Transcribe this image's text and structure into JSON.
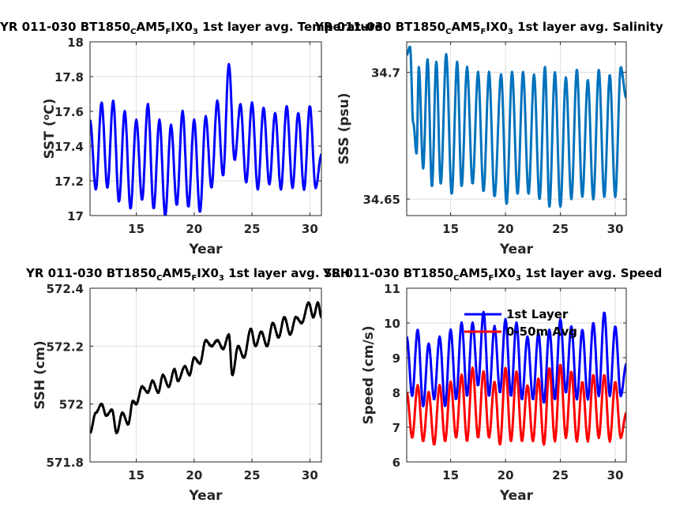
{
  "figure": {
    "colors": {
      "axis": "#262626",
      "grid": "#dfdfdf",
      "background": "#ffffff"
    }
  },
  "chart_data": [
    {
      "type": "line",
      "title": {
        "main": "YR 011-030 BT1850",
        "sub1": "C",
        "mid1": "AM5",
        "sub2": "F",
        "mid2": "IX0",
        "sub3": "3",
        "tail": " 1st layer avg. Temperature"
      },
      "xlabel": "Year",
      "ylabel": {
        "main": "SST (",
        "sup": "o",
        "tail": "C)"
      },
      "xlim": [
        11,
        31
      ],
      "ylim": [
        17,
        18
      ],
      "xticks": [
        15,
        20,
        25,
        30
      ],
      "yticks": [
        17,
        17.2,
        17.4,
        17.6,
        17.8,
        18
      ],
      "ytick_labels": [
        "17",
        "17.2",
        "17.4",
        "17.6",
        "17.8",
        "18"
      ],
      "grid": true,
      "series": [
        {
          "color": "#0000ff",
          "peaks": [
            17.61,
            17.65,
            17.67,
            17.6,
            17.55,
            17.64,
            17.57,
            17.52,
            17.6,
            17.55,
            17.57,
            17.66,
            17.87,
            17.64,
            17.65,
            17.62,
            17.59,
            17.63,
            17.59,
            17.63
          ],
          "troughs": [
            17.44,
            17.16,
            17.17,
            17.08,
            17.04,
            17.09,
            17.02,
            17.05,
            17.06,
            17.04,
            17.16,
            17.23,
            17.32,
            17.19,
            17.15,
            17.18,
            17.15,
            17.16,
            17.15,
            17.27
          ],
          "values_points": [
            [
              11.0,
              17.55
            ],
            [
              11.5,
              17.15
            ],
            [
              12.0,
              17.65
            ],
            [
              12.5,
              17.16
            ],
            [
              13.0,
              17.66
            ],
            [
              13.5,
              17.08
            ],
            [
              14.0,
              17.6
            ],
            [
              14.5,
              17.04
            ],
            [
              15.0,
              17.55
            ],
            [
              15.5,
              17.09
            ],
            [
              16.0,
              17.64
            ],
            [
              16.5,
              17.04
            ],
            [
              17.0,
              17.55
            ],
            [
              17.5,
              17.0
            ],
            [
              18.0,
              17.52
            ],
            [
              18.5,
              17.06
            ],
            [
              19.0,
              17.6
            ],
            [
              19.5,
              17.05
            ],
            [
              20.0,
              17.55
            ],
            [
              20.5,
              17.02
            ],
            [
              21.0,
              17.57
            ],
            [
              21.5,
              17.16
            ],
            [
              22.0,
              17.66
            ],
            [
              22.5,
              17.23
            ],
            [
              23.0,
              17.87
            ],
            [
              23.5,
              17.32
            ],
            [
              24.0,
              17.64
            ],
            [
              24.5,
              17.19
            ],
            [
              25.0,
              17.65
            ],
            [
              25.5,
              17.15
            ],
            [
              26.0,
              17.62
            ],
            [
              26.5,
              17.18
            ],
            [
              27.0,
              17.59
            ],
            [
              27.5,
              17.15
            ],
            [
              28.0,
              17.63
            ],
            [
              28.5,
              17.16
            ],
            [
              29.0,
              17.59
            ],
            [
              29.5,
              17.15
            ],
            [
              30.0,
              17.63
            ],
            [
              30.5,
              17.16
            ],
            [
              31.0,
              17.35
            ]
          ]
        }
      ]
    },
    {
      "type": "line",
      "title": {
        "main": "YR 011-030 BT1850",
        "sub1": "C",
        "mid1": "AM5",
        "sub2": "F",
        "mid2": "IX0",
        "sub3": "3",
        "tail": " 1st layer avg. Salinity"
      },
      "xlabel": "Year",
      "ylabel": {
        "main": "SSS (psu)",
        "sup": "",
        "tail": ""
      },
      "xlim": [
        11,
        31
      ],
      "ylim": [
        34.6435,
        34.712
      ],
      "xticks": [
        15,
        20,
        25,
        30
      ],
      "yticks": [
        34.65,
        34.7
      ],
      "ytick_labels": [
        "34.65",
        "34.7"
      ],
      "grid": true,
      "series": [
        {
          "color": "#0072bd",
          "values_points": [
            [
              11.0,
              34.707
            ],
            [
              11.3,
              34.71
            ],
            [
              11.6,
              34.68
            ],
            [
              11.9,
              34.668
            ],
            [
              12.1,
              34.702
            ],
            [
              12.5,
              34.662
            ],
            [
              12.9,
              34.705
            ],
            [
              13.3,
              34.655
            ],
            [
              13.7,
              34.704
            ],
            [
              14.1,
              34.656
            ],
            [
              14.6,
              34.707
            ],
            [
              15.1,
              34.652
            ],
            [
              15.6,
              34.704
            ],
            [
              16.0,
              34.655
            ],
            [
              16.5,
              34.702
            ],
            [
              17.0,
              34.656
            ],
            [
              17.5,
              34.7
            ],
            [
              18.0,
              34.653
            ],
            [
              18.5,
              34.7
            ],
            [
              19.0,
              34.651
            ],
            [
              19.6,
              34.699
            ],
            [
              20.1,
              34.648
            ],
            [
              20.6,
              34.7
            ],
            [
              21.1,
              34.652
            ],
            [
              21.6,
              34.7
            ],
            [
              22.1,
              34.652
            ],
            [
              22.6,
              34.699
            ],
            [
              23.1,
              34.65
            ],
            [
              23.6,
              34.702
            ],
            [
              24.0,
              34.647
            ],
            [
              24.5,
              34.7
            ],
            [
              25.0,
              34.647
            ],
            [
              25.5,
              34.698
            ],
            [
              26.0,
              34.65
            ],
            [
              26.5,
              34.701
            ],
            [
              27.0,
              34.651
            ],
            [
              27.5,
              34.697
            ],
            [
              28.0,
              34.65
            ],
            [
              28.5,
              34.701
            ],
            [
              29.0,
              34.651
            ],
            [
              29.5,
              34.699
            ],
            [
              30.0,
              34.651
            ],
            [
              30.5,
              34.702
            ],
            [
              31.0,
              34.69
            ]
          ]
        }
      ]
    },
    {
      "type": "line",
      "title": {
        "main": "YR 011-030 BT1850",
        "sub1": "C",
        "mid1": "AM5",
        "sub2": "F",
        "mid2": "IX0",
        "sub3": "3",
        "tail": " 1st layer avg. SSH"
      },
      "xlabel": "Year",
      "ylabel": {
        "main": "SSH (cm)",
        "sup": "",
        "tail": ""
      },
      "xlim": [
        11,
        31
      ],
      "ylim": [
        571.8,
        572.4
      ],
      "xticks": [
        15,
        20,
        25,
        30
      ],
      "yticks": [
        571.8,
        572,
        572.2,
        572.4
      ],
      "ytick_labels": [
        "571.8",
        "572",
        "572.2",
        "572.4"
      ],
      "grid": true,
      "series": [
        {
          "color": "#000000",
          "values_points": [
            [
              11.0,
              571.9
            ],
            [
              11.5,
              571.97
            ],
            [
              12.0,
              572.0
            ],
            [
              12.4,
              571.96
            ],
            [
              12.9,
              571.98
            ],
            [
              13.3,
              571.9
            ],
            [
              13.8,
              571.97
            ],
            [
              14.3,
              571.93
            ],
            [
              14.7,
              572.01
            ],
            [
              15.0,
              572.0
            ],
            [
              15.5,
              572.06
            ],
            [
              16.0,
              572.04
            ],
            [
              16.4,
              572.08
            ],
            [
              16.9,
              572.04
            ],
            [
              17.3,
              572.1
            ],
            [
              17.8,
              572.06
            ],
            [
              18.3,
              572.12
            ],
            [
              18.6,
              572.08
            ],
            [
              19.2,
              572.13
            ],
            [
              19.6,
              572.1
            ],
            [
              20.0,
              572.16
            ],
            [
              20.5,
              572.14
            ],
            [
              21.0,
              572.22
            ],
            [
              21.5,
              572.2
            ],
            [
              22.0,
              572.22
            ],
            [
              22.5,
              572.19
            ],
            [
              23.0,
              572.24
            ],
            [
              23.3,
              572.1
            ],
            [
              23.8,
              572.2
            ],
            [
              24.3,
              572.16
            ],
            [
              24.9,
              572.26
            ],
            [
              25.3,
              572.2
            ],
            [
              25.8,
              572.25
            ],
            [
              26.3,
              572.2
            ],
            [
              26.8,
              572.28
            ],
            [
              27.3,
              572.23
            ],
            [
              27.8,
              572.3
            ],
            [
              28.3,
              572.24
            ],
            [
              28.8,
              572.3
            ],
            [
              29.3,
              572.28
            ],
            [
              29.9,
              572.35
            ],
            [
              30.3,
              572.3
            ],
            [
              30.7,
              572.35
            ],
            [
              31.0,
              572.3
            ]
          ]
        }
      ]
    },
    {
      "type": "line",
      "title": {
        "main": "YR 011-030 BT1850",
        "sub1": "C",
        "mid1": "AM5",
        "sub2": "F",
        "mid2": "IX0",
        "sub3": "3",
        "tail": " 1st layer avg. Speed"
      },
      "xlabel": "Year",
      "ylabel": {
        "main": "Speed (cm/s)",
        "sup": "",
        "tail": ""
      },
      "xlim": [
        11,
        31
      ],
      "ylim": [
        6,
        11
      ],
      "xticks": [
        15,
        20,
        25,
        30
      ],
      "yticks": [
        6,
        7,
        8,
        9,
        10,
        11
      ],
      "ytick_labels": [
        "6",
        "7",
        "8",
        "9",
        "10",
        "11"
      ],
      "grid": true,
      "legend": "top",
      "series": [
        {
          "name": "1st Layer",
          "color": "#0000ff",
          "values_points": [
            [
              11.0,
              9.6
            ],
            [
              11.5,
              7.9
            ],
            [
              12.0,
              9.8
            ],
            [
              12.5,
              7.6
            ],
            [
              13.0,
              9.4
            ],
            [
              13.5,
              7.8
            ],
            [
              14.0,
              9.6
            ],
            [
              14.5,
              7.6
            ],
            [
              15.0,
              9.8
            ],
            [
              15.5,
              7.8
            ],
            [
              16.0,
              10.0
            ],
            [
              16.5,
              7.9
            ],
            [
              17.0,
              10.0
            ],
            [
              17.5,
              8.2
            ],
            [
              18.0,
              10.3
            ],
            [
              18.5,
              7.9
            ],
            [
              19.0,
              9.9
            ],
            [
              19.5,
              8.0
            ],
            [
              20.0,
              10.1
            ],
            [
              20.5,
              7.9
            ],
            [
              21.0,
              10.0
            ],
            [
              21.5,
              7.8
            ],
            [
              22.0,
              9.6
            ],
            [
              22.5,
              7.8
            ],
            [
              23.0,
              9.7
            ],
            [
              23.5,
              7.7
            ],
            [
              24.0,
              9.8
            ],
            [
              24.5,
              7.8
            ],
            [
              25.0,
              10.1
            ],
            [
              25.5,
              8.0
            ],
            [
              26.0,
              9.9
            ],
            [
              26.5,
              7.8
            ],
            [
              27.0,
              9.8
            ],
            [
              27.5,
              7.8
            ],
            [
              28.0,
              10.0
            ],
            [
              28.5,
              7.9
            ],
            [
              29.0,
              10.3
            ],
            [
              29.5,
              7.9
            ],
            [
              30.0,
              9.9
            ],
            [
              30.5,
              7.9
            ],
            [
              31.0,
              8.8
            ]
          ]
        },
        {
          "name": "0-50m Avg",
          "color": "#ff0000",
          "values_points": [
            [
              11.0,
              8.0
            ],
            [
              11.5,
              6.7
            ],
            [
              12.0,
              8.2
            ],
            [
              12.5,
              6.6
            ],
            [
              13.0,
              8.0
            ],
            [
              13.5,
              6.5
            ],
            [
              14.0,
              8.2
            ],
            [
              14.5,
              6.6
            ],
            [
              15.0,
              8.3
            ],
            [
              15.5,
              6.7
            ],
            [
              16.0,
              8.5
            ],
            [
              16.5,
              6.6
            ],
            [
              17.0,
              8.7
            ],
            [
              17.5,
              6.7
            ],
            [
              18.0,
              8.6
            ],
            [
              18.5,
              6.7
            ],
            [
              19.0,
              8.3
            ],
            [
              19.5,
              6.5
            ],
            [
              20.0,
              8.7
            ],
            [
              20.5,
              6.6
            ],
            [
              21.0,
              8.6
            ],
            [
              21.5,
              6.6
            ],
            [
              22.0,
              8.2
            ],
            [
              22.5,
              6.6
            ],
            [
              23.0,
              8.4
            ],
            [
              23.5,
              6.5
            ],
            [
              24.0,
              8.7
            ],
            [
              24.5,
              6.6
            ],
            [
              25.0,
              8.8
            ],
            [
              25.5,
              6.7
            ],
            [
              26.0,
              8.6
            ],
            [
              26.5,
              6.6
            ],
            [
              27.0,
              8.3
            ],
            [
              27.5,
              6.6
            ],
            [
              28.0,
              8.5
            ],
            [
              28.5,
              6.7
            ],
            [
              29.0,
              8.5
            ],
            [
              29.5,
              6.6
            ],
            [
              30.0,
              8.3
            ],
            [
              30.5,
              6.7
            ],
            [
              31.0,
              7.4
            ]
          ]
        }
      ]
    }
  ]
}
